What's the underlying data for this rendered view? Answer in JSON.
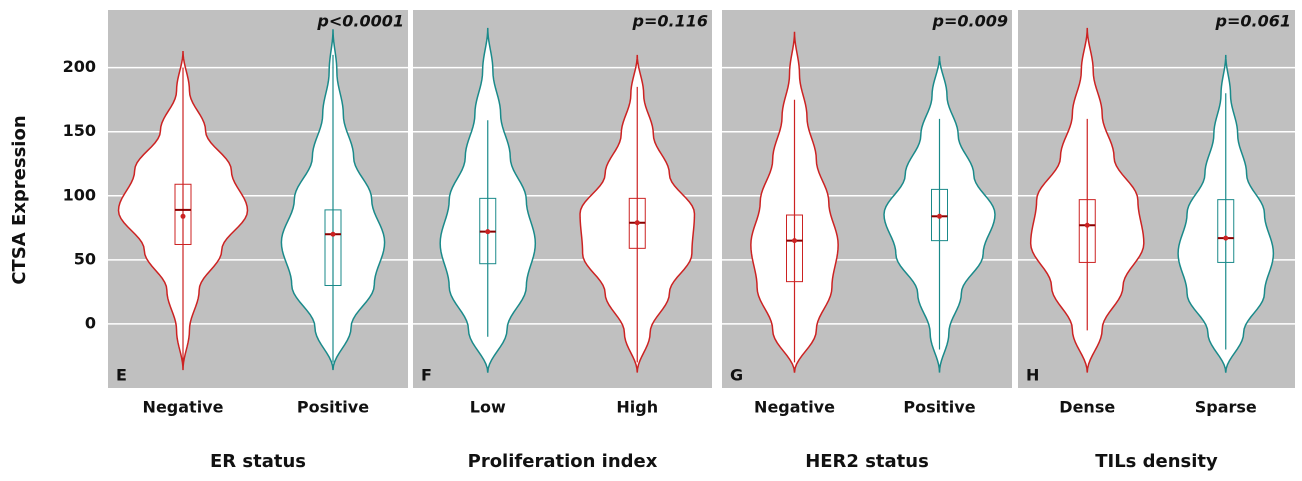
{
  "chart_data": [
    {
      "type": "violin",
      "panel": "E",
      "p_value": "p<0.0001",
      "y_label": "CTSA Expression",
      "x_label": "ER status",
      "ylim": [
        -50,
        245
      ],
      "yticks": [
        0,
        50,
        100,
        150,
        200
      ],
      "grid": true,
      "series": [
        {
          "name": "Negative",
          "color": "#cc2222",
          "min": -36,
          "max": 213,
          "density": [
            0,
            0.1,
            0.25,
            0.6,
            1.0,
            0.75,
            0.35,
            0.1,
            0
          ],
          "whisker": [
            -30,
            200
          ],
          "q1": 62,
          "median": 89,
          "q3": 109,
          "mean": 84
        },
        {
          "name": "Positive",
          "color": "#1a8a8a",
          "min": -36,
          "max": 230,
          "density": [
            0,
            0.28,
            0.64,
            0.8,
            0.6,
            0.32,
            0.16,
            0.06,
            0
          ],
          "whisker": [
            -30,
            210
          ],
          "q1": 30,
          "median": 70,
          "q3": 89,
          "mean": 70
        }
      ]
    },
    {
      "type": "violin",
      "panel": "F",
      "p_value": "p=0.116",
      "x_label": "Proliferation index",
      "ylim": [
        -50,
        245
      ],
      "grid": true,
      "series": [
        {
          "name": "Low",
          "color": "#1a8a8a",
          "min": -38,
          "max": 231,
          "density": [
            0,
            0.3,
            0.6,
            0.74,
            0.6,
            0.35,
            0.2,
            0.08,
            0
          ],
          "whisker": [
            -10,
            159
          ],
          "q1": 47,
          "median": 72,
          "q3": 98,
          "mean": 72
        },
        {
          "name": "High",
          "color": "#cc2222",
          "min": -38,
          "max": 210,
          "density": [
            0,
            0.2,
            0.5,
            0.85,
            0.89,
            0.5,
            0.25,
            0.1,
            0
          ],
          "whisker": [
            -30,
            185
          ],
          "q1": 59,
          "median": 79,
          "q3": 98,
          "mean": 79
        }
      ]
    },
    {
      "type": "violin",
      "panel": "G",
      "p_value": "p=0.009",
      "x_label": "HER2 status",
      "ylim": [
        -50,
        245
      ],
      "grid": true,
      "series": [
        {
          "name": "Negative",
          "color": "#cc2222",
          "min": -38,
          "max": 228,
          "density": [
            0,
            0.35,
            0.6,
            0.7,
            0.55,
            0.35,
            0.2,
            0.08,
            0
          ],
          "whisker": [
            -30,
            175
          ],
          "q1": 33,
          "median": 65,
          "q3": 85,
          "mean": 65
        },
        {
          "name": "Positive",
          "color": "#1a8a8a",
          "min": -38,
          "max": 209,
          "density": [
            0,
            0.15,
            0.35,
            0.7,
            0.89,
            0.55,
            0.3,
            0.12,
            0
          ],
          "whisker": [
            -20,
            160
          ],
          "q1": 65,
          "median": 84,
          "q3": 105,
          "mean": 84
        }
      ]
    },
    {
      "type": "violin",
      "panel": "H",
      "p_value": "p=0.061",
      "x_label": "TILs density",
      "ylim": [
        -50,
        245
      ],
      "grid": true,
      "series": [
        {
          "name": "Dense",
          "color": "#cc2222",
          "min": -38,
          "max": 231,
          "density": [
            0,
            0.25,
            0.6,
            0.95,
            0.85,
            0.45,
            0.25,
            0.1,
            0
          ],
          "whisker": [
            -5,
            160
          ],
          "q1": 48,
          "median": 77,
          "q3": 97,
          "mean": 77
        },
        {
          "name": "Sparse",
          "color": "#1a8a8a",
          "min": -38,
          "max": 210,
          "density": [
            0,
            0.3,
            0.65,
            0.8,
            0.65,
            0.35,
            0.2,
            0.08,
            0
          ],
          "whisker": [
            -20,
            180
          ],
          "q1": 48,
          "median": 67,
          "q3": 97,
          "mean": 67
        }
      ]
    }
  ]
}
